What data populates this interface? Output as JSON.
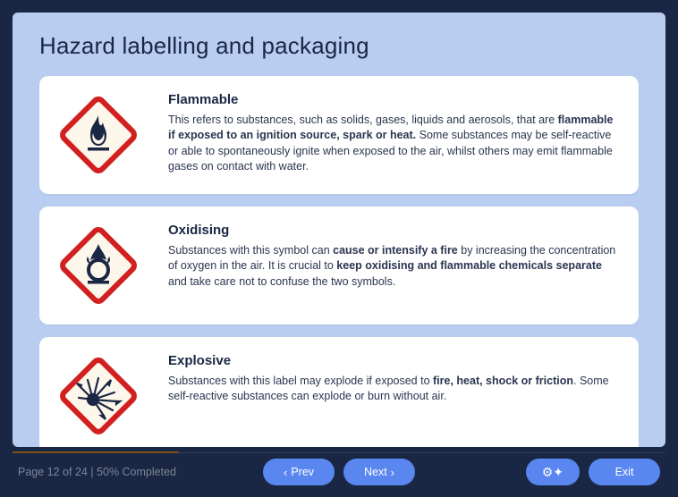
{
  "page": {
    "title": "Hazard labelling and packaging",
    "background_color": "#1a2744",
    "panel_color": "#b8cdf0",
    "card_color": "#ffffff",
    "accent_color": "#5a86f0"
  },
  "hazards": [
    {
      "icon": "flammable",
      "title": "Flammable",
      "desc_html": "This refers to substances, such as solids, gases, liquids and aerosols, that are <b>flammable if exposed to an ignition source, spark or heat.</b> Some substances may be self-reactive or able to spontaneously ignite when exposed to the air, whilst others may emit flammable gases on contact with water."
    },
    {
      "icon": "oxidising",
      "title": "Oxidising",
      "desc_html": "Substances with this symbol can <b>cause or intensify a fire</b> by increasing the concentration of oxygen in the air. It is crucial to <b>keep oxidising and flammable chemicals separate</b> and take care not to confuse the two symbols."
    },
    {
      "icon": "explosive",
      "title": "Explosive",
      "desc_html": "Substances with this label may explode if exposed to <b>fire, heat, shock or friction</b>. Some self-reactive substances can explode or burn without air."
    }
  ],
  "symbol_style": {
    "border_color": "#d21f1f",
    "fill_color": "#fdf6ea",
    "glyph_color": "#1a2744"
  },
  "footer": {
    "page_current": 12,
    "page_total": 24,
    "percent_completed": 50,
    "page_text": "Page 12 of 24 | 50% Completed",
    "prev_label": "Prev",
    "next_label": "Next",
    "exit_label": "Exit",
    "progress_color": "#7a5016"
  }
}
